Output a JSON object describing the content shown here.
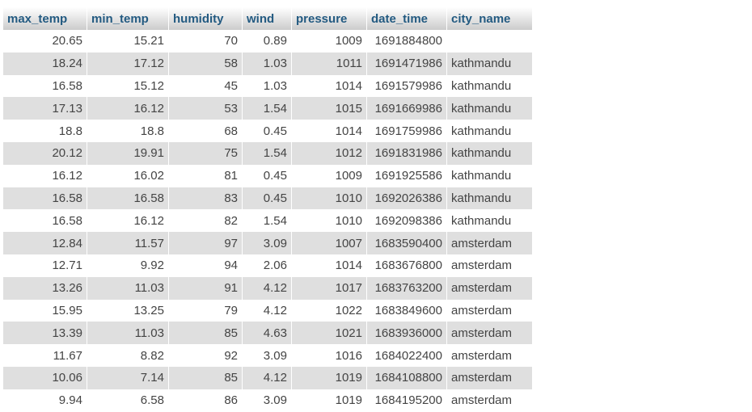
{
  "table": {
    "columns": [
      "max_temp",
      "min_temp",
      "humidity",
      "wind",
      "pressure",
      "date_time",
      "city_name"
    ],
    "rows": [
      [
        "20.65",
        "15.21",
        "70",
        "0.89",
        "1009",
        "1691884800",
        ""
      ],
      [
        "18.24",
        "17.12",
        "58",
        "1.03",
        "1011",
        "1691471986",
        "kathmandu"
      ],
      [
        "16.58",
        "15.12",
        "45",
        "1.03",
        "1014",
        "1691579986",
        "kathmandu"
      ],
      [
        "17.13",
        "16.12",
        "53",
        "1.54",
        "1015",
        "1691669986",
        "kathmandu"
      ],
      [
        "18.8",
        "18.8",
        "68",
        "0.45",
        "1014",
        "1691759986",
        "kathmandu"
      ],
      [
        "20.12",
        "19.91",
        "75",
        "1.54",
        "1012",
        "1691831986",
        "kathmandu"
      ],
      [
        "16.12",
        "16.02",
        "81",
        "0.45",
        "1009",
        "1691925586",
        "kathmandu"
      ],
      [
        "16.58",
        "16.58",
        "83",
        "0.45",
        "1010",
        "1692026386",
        "kathmandu"
      ],
      [
        "16.58",
        "16.12",
        "82",
        "1.54",
        "1010",
        "1692098386",
        "kathmandu"
      ],
      [
        "12.84",
        "11.57",
        "97",
        "3.09",
        "1007",
        "1683590400",
        "amsterdam"
      ],
      [
        "12.71",
        "9.92",
        "94",
        "2.06",
        "1014",
        "1683676800",
        "amsterdam"
      ],
      [
        "13.26",
        "11.03",
        "91",
        "4.12",
        "1017",
        "1683763200",
        "amsterdam"
      ],
      [
        "15.95",
        "13.25",
        "79",
        "4.12",
        "1022",
        "1683849600",
        "amsterdam"
      ],
      [
        "13.39",
        "11.03",
        "85",
        "4.63",
        "1021",
        "1683936000",
        "amsterdam"
      ],
      [
        "11.67",
        "8.82",
        "92",
        "3.09",
        "1016",
        "1684022400",
        "amsterdam"
      ],
      [
        "10.06",
        "7.14",
        "85",
        "4.12",
        "1019",
        "1684108800",
        "amsterdam"
      ],
      [
        "9.94",
        "6.58",
        "86",
        "3.09",
        "1019",
        "1684195200",
        "amsterdam"
      ]
    ]
  }
}
